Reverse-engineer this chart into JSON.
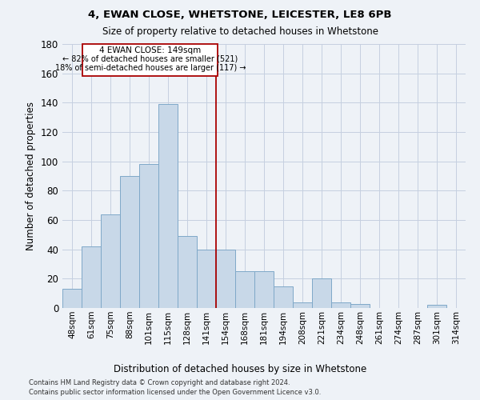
{
  "title": "4, EWAN CLOSE, WHETSTONE, LEICESTER, LE8 6PB",
  "subtitle": "Size of property relative to detached houses in Whetstone",
  "xlabel_bottom": "Distribution of detached houses by size in Whetstone",
  "ylabel": "Number of detached properties",
  "bar_labels": [
    "48sqm",
    "61sqm",
    "75sqm",
    "88sqm",
    "101sqm",
    "115sqm",
    "128sqm",
    "141sqm",
    "154sqm",
    "168sqm",
    "181sqm",
    "194sqm",
    "208sqm",
    "221sqm",
    "234sqm",
    "248sqm",
    "261sqm",
    "274sqm",
    "287sqm",
    "301sqm",
    "314sqm"
  ],
  "bar_values": [
    13,
    42,
    64,
    90,
    98,
    139,
    49,
    40,
    40,
    25,
    25,
    15,
    4,
    20,
    4,
    3,
    0,
    0,
    0,
    2,
    0
  ],
  "bar_color": "#c8d8e8",
  "bar_edge_color": "#7fa8c8",
  "ylim": [
    0,
    180
  ],
  "yticks": [
    0,
    20,
    40,
    60,
    80,
    100,
    120,
    140,
    160,
    180
  ],
  "vline_index": 7.5,
  "annotation_title": "4 EWAN CLOSE: 149sqm",
  "annotation_line1": "← 82% of detached houses are smaller (521)",
  "annotation_line2": "18% of semi-detached houses are larger (117) →",
  "annotation_box_color": "#aa0000",
  "footer_line1": "Contains HM Land Registry data © Crown copyright and database right 2024.",
  "footer_line2": "Contains public sector information licensed under the Open Government Licence v3.0.",
  "background_color": "#eef2f7",
  "grid_color": "#c5cfe0"
}
